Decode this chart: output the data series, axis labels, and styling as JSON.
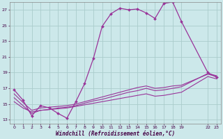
{
  "background_color": "#cce8ea",
  "grid_color": "#aacccc",
  "line_color": "#993399",
  "xlabel": "Windchill (Refroidissement éolien,°C)",
  "xlim": [
    -0.5,
    23.5
  ],
  "ylim": [
    12.5,
    28.0
  ],
  "yticks": [
    13,
    15,
    17,
    19,
    21,
    23,
    25,
    27
  ],
  "xticks": [
    0,
    1,
    2,
    3,
    4,
    5,
    6,
    7,
    8,
    9,
    10,
    11,
    12,
    13,
    14,
    15,
    16,
    17,
    18,
    19,
    22,
    23
  ],
  "series_main": {
    "x": [
      0,
      1,
      2,
      3,
      4,
      5,
      6,
      7,
      8,
      9,
      10,
      11,
      12,
      13,
      14,
      15,
      16,
      17,
      18,
      19
    ],
    "y": [
      16.8,
      15.5,
      13.5,
      14.8,
      14.5,
      13.8,
      13.2,
      15.3,
      17.6,
      20.8,
      24.9,
      26.5,
      27.2,
      27.0,
      27.1,
      26.6,
      25.9,
      27.8,
      28.0,
      25.5
    ]
  },
  "series_end": {
    "x": [
      22,
      23
    ],
    "y": [
      19.0,
      18.4
    ]
  },
  "series_diag1": {
    "x": [
      0,
      1,
      2,
      3,
      4,
      5,
      6,
      7,
      8,
      9,
      10,
      11,
      12,
      13,
      14,
      15,
      16,
      17,
      18,
      19,
      22,
      23
    ],
    "y": [
      16.3,
      15.2,
      14.2,
      14.5,
      14.6,
      14.7,
      14.8,
      15.0,
      15.3,
      15.6,
      15.9,
      16.2,
      16.5,
      16.8,
      17.1,
      17.3,
      17.0,
      17.1,
      17.3,
      17.4,
      18.8,
      18.5
    ]
  },
  "series_diag2": {
    "x": [
      0,
      1,
      2,
      3,
      4,
      5,
      6,
      7,
      8,
      9,
      10,
      11,
      12,
      13,
      14,
      15,
      16,
      17,
      18,
      19,
      22,
      23
    ],
    "y": [
      15.8,
      14.8,
      13.8,
      14.2,
      14.3,
      14.5,
      14.6,
      14.8,
      15.1,
      15.4,
      15.6,
      15.9,
      16.2,
      16.5,
      16.7,
      17.0,
      16.7,
      16.8,
      17.0,
      17.2,
      18.9,
      18.6
    ]
  },
  "series_low": {
    "x": [
      0,
      1,
      2,
      3,
      4,
      5,
      6,
      7,
      8,
      9,
      10,
      11,
      12,
      13,
      14,
      15,
      16,
      17,
      18,
      19,
      22,
      23
    ],
    "y": [
      15.3,
      14.5,
      14.0,
      14.2,
      14.3,
      14.4,
      14.5,
      14.7,
      14.9,
      15.1,
      15.3,
      15.5,
      15.7,
      15.9,
      16.1,
      16.3,
      16.0,
      16.1,
      16.3,
      16.5,
      18.5,
      18.2
    ]
  }
}
